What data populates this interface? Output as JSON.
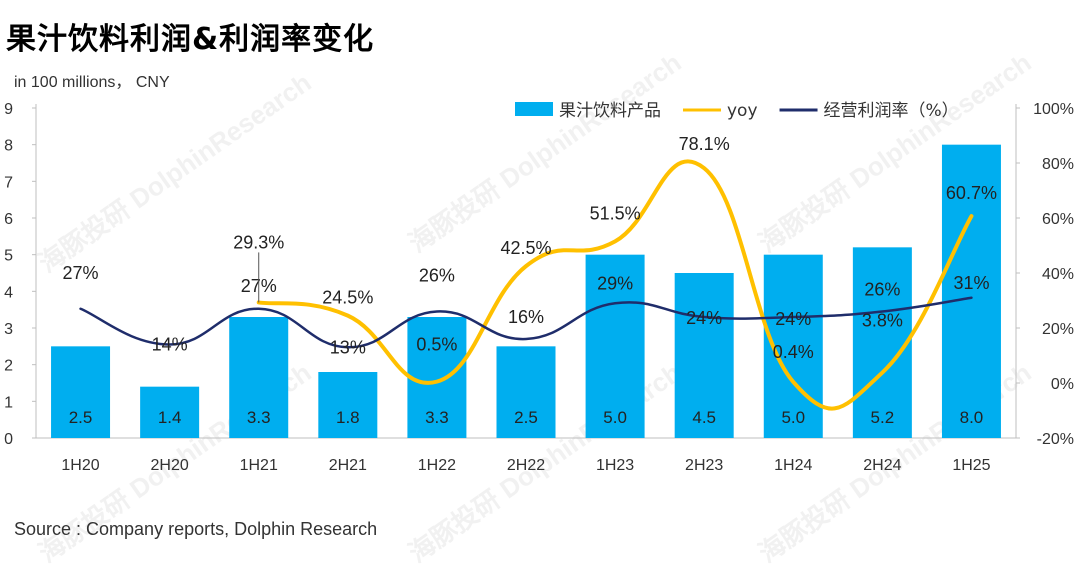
{
  "chart_data": {
    "type": "bar",
    "title": "果汁饮料利润&利润率变化",
    "unit": "in 100 millions， CNY",
    "source": "Source : Company reports, Dolphin Research",
    "categories": [
      "1H20",
      "2H20",
      "1H21",
      "2H21",
      "1H22",
      "2H22",
      "1H23",
      "2H23",
      "1H24",
      "2H24",
      "1H25"
    ],
    "left_axis": {
      "min": 0,
      "max": 9,
      "ticks": [
        "0",
        "1",
        "2",
        "3",
        "4",
        "5",
        "6",
        "7",
        "8",
        "9"
      ]
    },
    "right_axis": {
      "min": -20,
      "max": 100,
      "ticks": [
        "-20%",
        "0%",
        "20%",
        "40%",
        "60%",
        "80%",
        "100%"
      ]
    },
    "legend": {
      "position": "top-right"
    },
    "series": [
      {
        "name": "果汁饮料产品",
        "kind": "bar",
        "axis": "left",
        "color": "#00AEEF",
        "values": [
          2.5,
          1.4,
          3.3,
          1.8,
          3.3,
          2.5,
          5.0,
          4.5,
          5.0,
          5.2,
          8.0
        ],
        "labels": [
          "2.5",
          "1.4",
          "3.3",
          "1.8",
          "3.3",
          "2.5",
          "5.0",
          "4.5",
          "5.0",
          "5.2",
          "8.0"
        ]
      },
      {
        "name": "yoy",
        "kind": "line",
        "axis": "right",
        "color": "#FFC000",
        "values": [
          null,
          null,
          29.3,
          24.5,
          0.5,
          42.5,
          51.5,
          78.1,
          0.4,
          3.8,
          60.7
        ],
        "labels": [
          "",
          "",
          "29.3%",
          "24.5%",
          "0.5%",
          "42.5%",
          "51.5%",
          "78.1%",
          "0.4%",
          "3.8%",
          "60.7%"
        ]
      },
      {
        "name": "经营利润率（%）",
        "kind": "line",
        "axis": "right",
        "color": "#1F2D6B",
        "values": [
          27,
          14,
          27,
          13,
          26,
          16,
          29,
          24,
          24,
          26,
          31
        ],
        "labels": [
          "27%",
          "14%",
          "27%",
          "13%",
          "26%",
          "16%",
          "29%",
          "24%",
          "24%",
          "26%",
          "31%"
        ]
      }
    ],
    "watermark": "海豚投研 DolphinResearch"
  }
}
